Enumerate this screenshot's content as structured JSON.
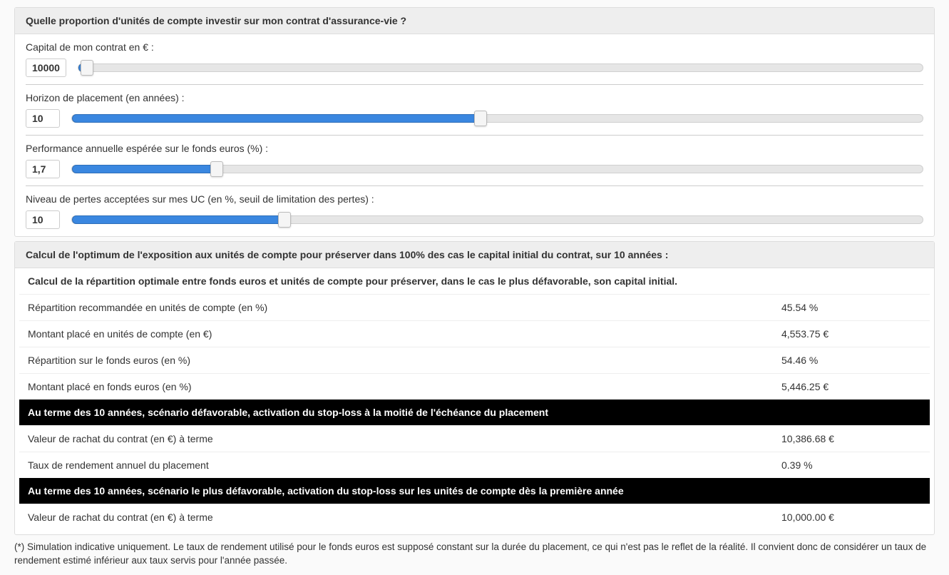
{
  "colors": {
    "slider_fill": "#3a87e0",
    "slider_track": "#e6e6e6",
    "panel_heading_bg": "#eeeeee",
    "black_row_bg": "#000000",
    "black_row_text": "#ffffff"
  },
  "inputs_panel": {
    "title": "Quelle proportion d'unités de compte investir sur mon contrat d'assurance-vie ?",
    "sliders": [
      {
        "label": "Capital de mon contrat en € :",
        "value": "10000",
        "fill_pct": 1
      },
      {
        "label": "Horizon de placement (en années) :",
        "value": "10",
        "fill_pct": 48
      },
      {
        "label": "Performance annuelle espérée sur le fonds euros (%) :",
        "value": "1,7",
        "fill_pct": 17
      },
      {
        "label": "Niveau de pertes acceptées sur mes UC (en %, seuil de limitation des pertes) :",
        "value": "10",
        "fill_pct": 25
      }
    ]
  },
  "results_panel": {
    "title": "Calcul de l'optimum de l'exposition aux unités de compte pour préserver dans 100% des cas le capital initial du contrat, sur 10 années :",
    "section1_title": "Calcul de la répartition optimale entre fonds euros et unités de compte pour préserver, dans le cas le plus défavorable, son capital initial.",
    "section1_rows": [
      {
        "label": "Répartition recommandée en unités de compte (en %)",
        "value": "45.54 %"
      },
      {
        "label": "Montant placé en unités de compte (en €)",
        "value": "4,553.75 €"
      },
      {
        "label": "Répartition sur le fonds euros (en %)",
        "value": "54.46 %"
      },
      {
        "label": "Montant placé en fonds euros (en %)",
        "value": "5,446.25 €"
      }
    ],
    "black1_title": "Au terme des 10 années, scénario défavorable, activation du stop-loss à la moitié de l'échéance du placement",
    "black1_rows": [
      {
        "label": "Valeur de rachat du contrat (en €) à terme",
        "value": "10,386.68 €"
      },
      {
        "label": "Taux de rendement annuel du placement",
        "value": "0.39 %"
      }
    ],
    "black2_title": "Au terme des 10 années, scénario le plus défavorable, activation du stop-loss sur les unités de compte dès la première année",
    "black2_rows": [
      {
        "label": "Valeur de rachat du contrat (en €) à terme",
        "value": "10,000.00 €"
      }
    ]
  },
  "footnote": "(*) Simulation indicative uniquement. Le taux de rendement utilisé pour le fonds euros est supposé constant sur la durée du placement, ce qui n'est pas le reflet de la réalité. Il convient donc de considérer un taux de rendement estimé inférieur aux taux servis pour l'année passée."
}
